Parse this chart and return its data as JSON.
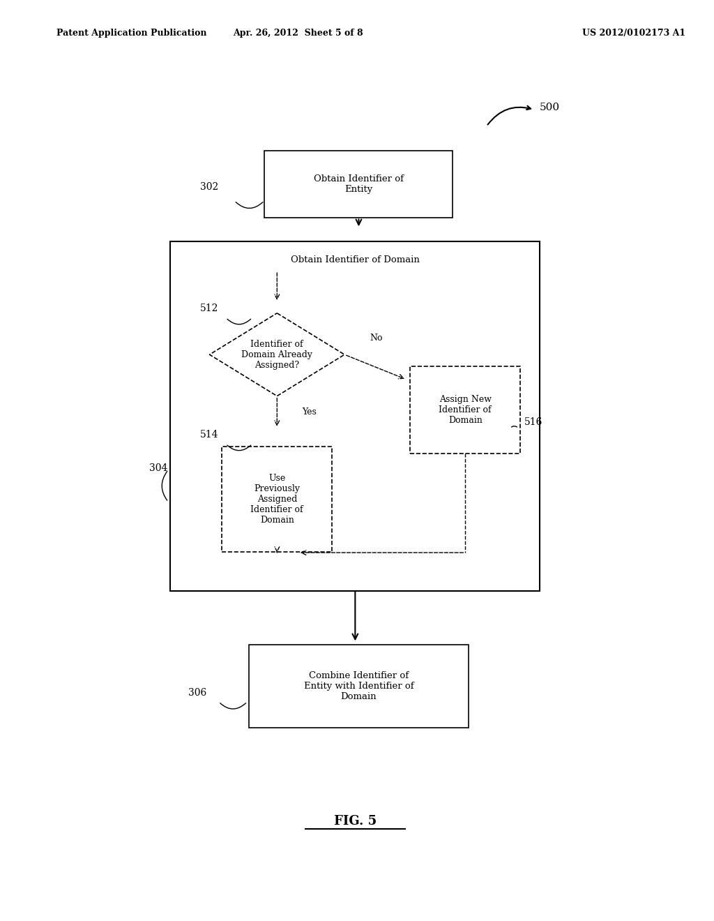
{
  "bg_color": "#ffffff",
  "text_color": "#000000",
  "header_left": "Patent Application Publication",
  "header_center": "Apr. 26, 2012  Sheet 5 of 8",
  "header_right": "US 2012/0102173 A1",
  "fig_label": "FIG. 5",
  "figure_number": "500"
}
